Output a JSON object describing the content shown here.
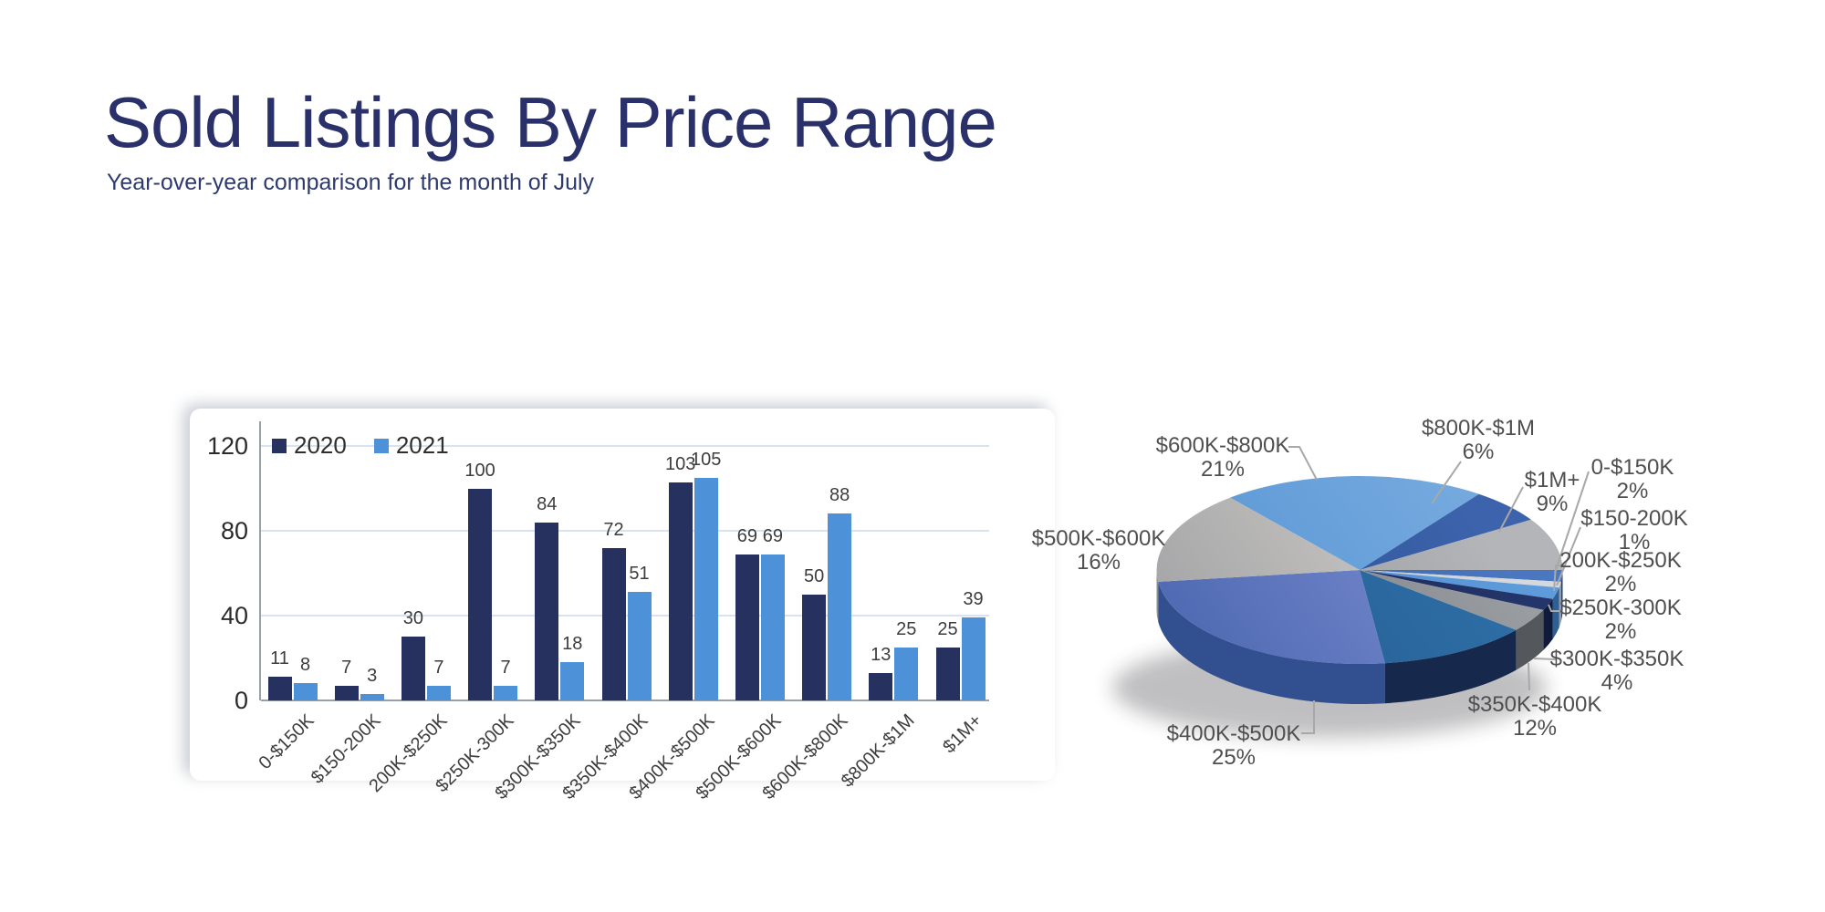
{
  "slide": {
    "title": "Sold Listings By Price Range",
    "subtitle": "Year-over-year comparison for the month of July"
  },
  "colors": {
    "background": "#ffffff",
    "title_text": "#29306a",
    "axis_line": "#9aa0a8",
    "gridline": "#d9e2f2",
    "tick_text": "#2b2b2b",
    "value_label_text": "#3d3d3d",
    "pie_label_text": "#4f4f4f",
    "leader_line": "#a8a8a8",
    "series_2020": "#26315f",
    "series_2021": "#4d92d9"
  },
  "chart_data": [
    {
      "type": "bar",
      "title": "",
      "categories": [
        "0-$150K",
        "$150-200K",
        "200K-$250K",
        "$250K-300K",
        "$300K-$350K",
        "$350K-$400K",
        "$400K-$500K",
        "$500K-$600K",
        "$600K-$800K",
        "$800K-$1M",
        "$1M+"
      ],
      "series": [
        {
          "name": "2020",
          "color": "#26315f",
          "values": [
            11,
            7,
            30,
            100,
            84,
            72,
            103,
            69,
            50,
            13,
            25
          ]
        },
        {
          "name": "2021",
          "color": "#4d92d9",
          "values": [
            8,
            3,
            7,
            7,
            18,
            51,
            105,
            69,
            88,
            25,
            39
          ]
        }
      ],
      "ylim": [
        0,
        120
      ],
      "yticks": [
        0,
        40,
        80,
        120
      ],
      "grid": true,
      "legend_position": "top-left",
      "value_labels": true
    },
    {
      "type": "pie",
      "effect": "3d",
      "rotation_deg": 90,
      "labels": [
        "0-$150K",
        "$150-200K",
        "200K-$250K",
        "$250K-300K",
        "$300K-$350K",
        "$350K-$400K",
        "$400K-$500K",
        "$500K-$600K",
        "$600K-$800K",
        "$800K-$1M",
        "$1M+"
      ],
      "values": [
        2,
        1,
        2,
        2,
        4,
        12,
        25,
        16,
        21,
        6,
        9
      ],
      "unit": "%",
      "slice_colors": [
        {
          "light": "#4a77c0",
          "dark": "#35599c",
          "wall": "#27407a"
        },
        {
          "light": "#d5d8dd",
          "dark": "#b9bec6",
          "wall": "#989ea8"
        },
        {
          "light": "#5d9bdb",
          "dark": "#4583c7",
          "wall": "#2f5f94"
        },
        {
          "light": "#24356b",
          "dark": "#16224a",
          "wall": "#101a3a"
        },
        {
          "light": "#9a9ea2",
          "dark": "#73777b",
          "wall": "#54575b"
        },
        {
          "light": "#2e6fa7",
          "dark": "#245c90",
          "wall": "#16294d"
        },
        {
          "light": "#7b8cd2",
          "dark": "#4c68b0",
          "wall": "#32508f"
        },
        {
          "light": "#d0cdc7",
          "dark": "#a2a3a6",
          "wall": "#8b8d90"
        },
        {
          "light": "#74a9de",
          "dark": "#5593d3",
          "wall": "#406fa0"
        },
        {
          "light": "#3c63ab",
          "dark": "#2b5094",
          "wall": "#1f3a6e"
        },
        {
          "light": "#b3b5b8",
          "dark": "#909396",
          "wall": "#6f7276"
        }
      ]
    }
  ]
}
